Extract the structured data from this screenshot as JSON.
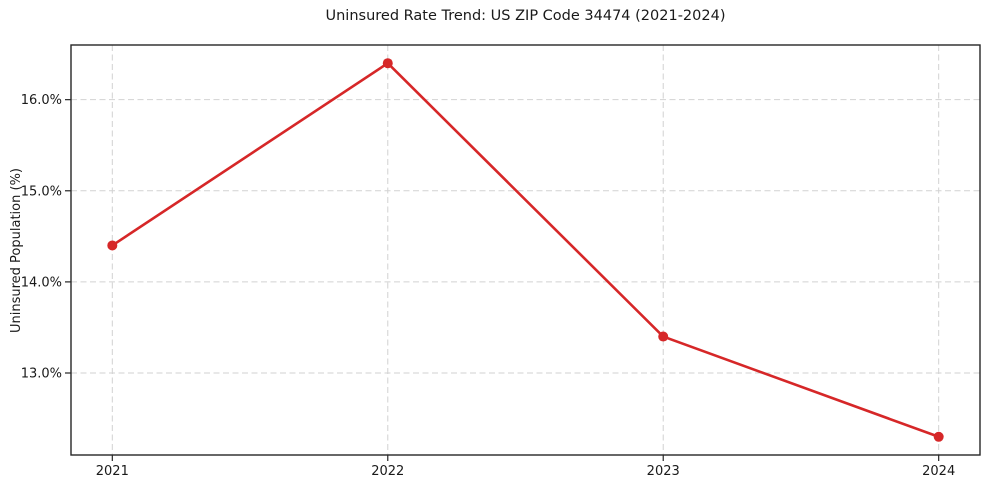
{
  "chart_data": {
    "type": "line",
    "title": "Uninsured Rate Trend: US ZIP Code 34474 (2021-2024)",
    "xlabel": "",
    "ylabel": "Uninsured Population (%)",
    "x": [
      2021,
      2022,
      2023,
      2024
    ],
    "x_tick_labels": [
      "2021",
      "2022",
      "2023",
      "2024"
    ],
    "series": [
      {
        "name": "Uninsured rate",
        "values": [
          14.4,
          16.4,
          13.4,
          12.3
        ]
      }
    ],
    "y_ticks": [
      13,
      14,
      15,
      16
    ],
    "y_tick_labels": [
      "13.0%",
      "14.0%",
      "15.0%",
      "16.0%"
    ],
    "xlim": [
      2020.85,
      2024.15
    ],
    "ylim": [
      12.1,
      16.6
    ],
    "grid": "dashed-both-axes",
    "legend": "none",
    "marker": "circle",
    "colors": {
      "line": "#d62728",
      "marker": "#d62728",
      "grid": "#d2d2d2",
      "spine": "#262626",
      "text": "#1a1a1a",
      "background": "#ffffff"
    }
  }
}
